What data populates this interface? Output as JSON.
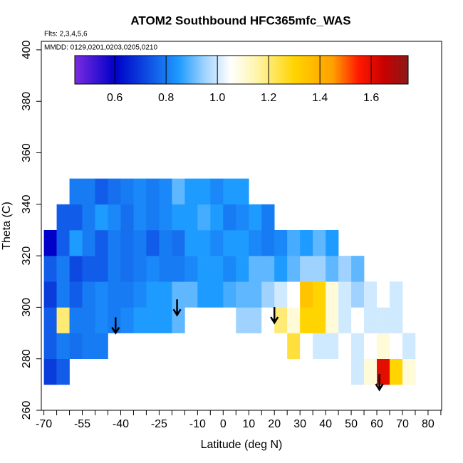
{
  "chart_data": {
    "type": "heatmap",
    "title": "ATOM2 Southbound HFC365mfc_WAS",
    "subtitle": "Flts: 2,3,4,5,6",
    "annotation": "MMDD: 0129,0201,0203,0205,0210",
    "x_label": "Latitude (deg N)",
    "y_label": "Theta (C)",
    "xlim": [
      -71,
      85.3
    ],
    "ylim": [
      260,
      403.3
    ],
    "xticks": [
      -70,
      -55,
      -40,
      -25,
      -10,
      0,
      10,
      20,
      30,
      40,
      50,
      60,
      70,
      80
    ],
    "xminorticks": [
      -65,
      -60,
      -50,
      -45,
      -35,
      -30,
      -20,
      -15,
      -5,
      5,
      15,
      25,
      35,
      45,
      55,
      65,
      75,
      85
    ],
    "yticks": [
      260,
      280,
      300,
      320,
      340,
      360,
      380,
      400
    ],
    "xbins": [
      -70,
      -65,
      -60,
      -55,
      -50,
      -45,
      -40,
      -35,
      -30,
      -25,
      -20,
      -15,
      -10,
      -5,
      0,
      5,
      10,
      15,
      20,
      25,
      30,
      35,
      40,
      45,
      50,
      55,
      60,
      65,
      70,
      75
    ],
    "ybins": [
      270,
      280,
      290,
      300,
      310,
      320,
      330,
      340,
      350
    ],
    "z": [
      [
        0.7,
        0.75,
        null,
        null,
        null,
        null,
        null,
        null,
        null,
        null,
        null,
        null,
        null,
        null,
        null,
        null,
        null,
        null,
        null,
        null,
        null,
        null,
        null,
        1.05,
        1.0,
        1.1,
        1.6,
        1.3,
        1.1
      ],
      [
        0.75,
        0.8,
        0.78,
        0.8,
        0.8,
        null,
        null,
        null,
        null,
        null,
        null,
        null,
        null,
        null,
        null,
        null,
        null,
        null,
        null,
        1.25,
        1.05,
        1.0,
        1.0,
        1.05,
        1.0,
        1.05,
        1.1,
        1.05,
        1.0
      ],
      [
        0.75,
        1.2,
        0.8,
        0.8,
        0.82,
        0.8,
        0.82,
        0.85,
        0.85,
        0.85,
        0.9,
        null,
        null,
        null,
        null,
        0.95,
        0.95,
        1.05,
        1.2,
        1.1,
        1.3,
        1.3,
        1.1,
        1.0,
        1.05,
        1.0,
        1.0,
        1.0,
        null
      ],
      [
        0.7,
        0.8,
        0.75,
        0.8,
        0.82,
        0.8,
        0.8,
        0.82,
        0.85,
        0.85,
        0.9,
        0.9,
        0.85,
        0.85,
        0.88,
        0.9,
        0.9,
        0.95,
        1.0,
        1.05,
        1.35,
        1.3,
        1.1,
        1.0,
        0.95,
        1.0,
        1.05,
        1.0,
        null
      ],
      [
        0.75,
        0.8,
        0.72,
        0.75,
        0.75,
        0.8,
        0.78,
        0.8,
        0.82,
        0.8,
        0.8,
        0.82,
        0.85,
        0.85,
        0.82,
        0.85,
        0.9,
        0.9,
        0.85,
        0.9,
        0.95,
        0.95,
        0.9,
        0.95,
        0.9,
        null,
        null,
        null,
        null
      ],
      [
        0.6,
        0.75,
        0.85,
        0.8,
        0.75,
        0.8,
        0.78,
        0.8,
        0.75,
        0.8,
        0.78,
        0.85,
        0.85,
        0.82,
        0.85,
        0.85,
        0.82,
        0.8,
        0.82,
        0.88,
        0.85,
        0.9,
        0.85,
        null,
        null,
        null,
        null,
        null,
        null
      ],
      [
        null,
        0.75,
        0.75,
        0.8,
        0.85,
        0.82,
        0.78,
        0.82,
        0.8,
        0.82,
        0.85,
        0.85,
        0.88,
        0.85,
        0.8,
        0.82,
        0.85,
        0.8,
        null,
        null,
        null,
        null,
        null,
        null,
        null,
        null,
        null,
        null,
        null
      ],
      [
        null,
        null,
        0.8,
        0.8,
        0.75,
        0.78,
        0.8,
        0.82,
        0.8,
        0.82,
        0.9,
        0.85,
        0.85,
        0.82,
        0.85,
        0.85,
        null,
        null,
        null,
        null,
        null,
        null,
        null,
        null,
        null,
        null,
        null,
        null,
        null
      ]
    ],
    "colorbar_lim": [
      0.444,
      1.744
    ],
    "colorbar_ticks": [
      0.6,
      0.8,
      {
        "value": 1,
        "label": "1.0"
      },
      1.2,
      1.4,
      1.6
    ],
    "colorscale": [
      [
        0.444,
        "#7b2be0"
      ],
      [
        0.6,
        "#0000c8"
      ],
      [
        0.7,
        "#0a3cdc"
      ],
      [
        0.85,
        "#1e9bff"
      ],
      [
        0.95,
        "#9fd2ff"
      ],
      [
        1.05,
        "#ffffff"
      ],
      [
        1.15,
        "#fff5b0"
      ],
      [
        1.3,
        "#ffd400"
      ],
      [
        1.45,
        "#ffa000"
      ],
      [
        1.55,
        "#ff1a00"
      ],
      [
        1.65,
        "#c80000"
      ],
      [
        1.744,
        "#8b1a1a"
      ]
    ],
    "arrows": {
      "x": [
        -42,
        -18,
        20,
        61
      ],
      "y": [
        290,
        297,
        294,
        268
      ]
    }
  }
}
